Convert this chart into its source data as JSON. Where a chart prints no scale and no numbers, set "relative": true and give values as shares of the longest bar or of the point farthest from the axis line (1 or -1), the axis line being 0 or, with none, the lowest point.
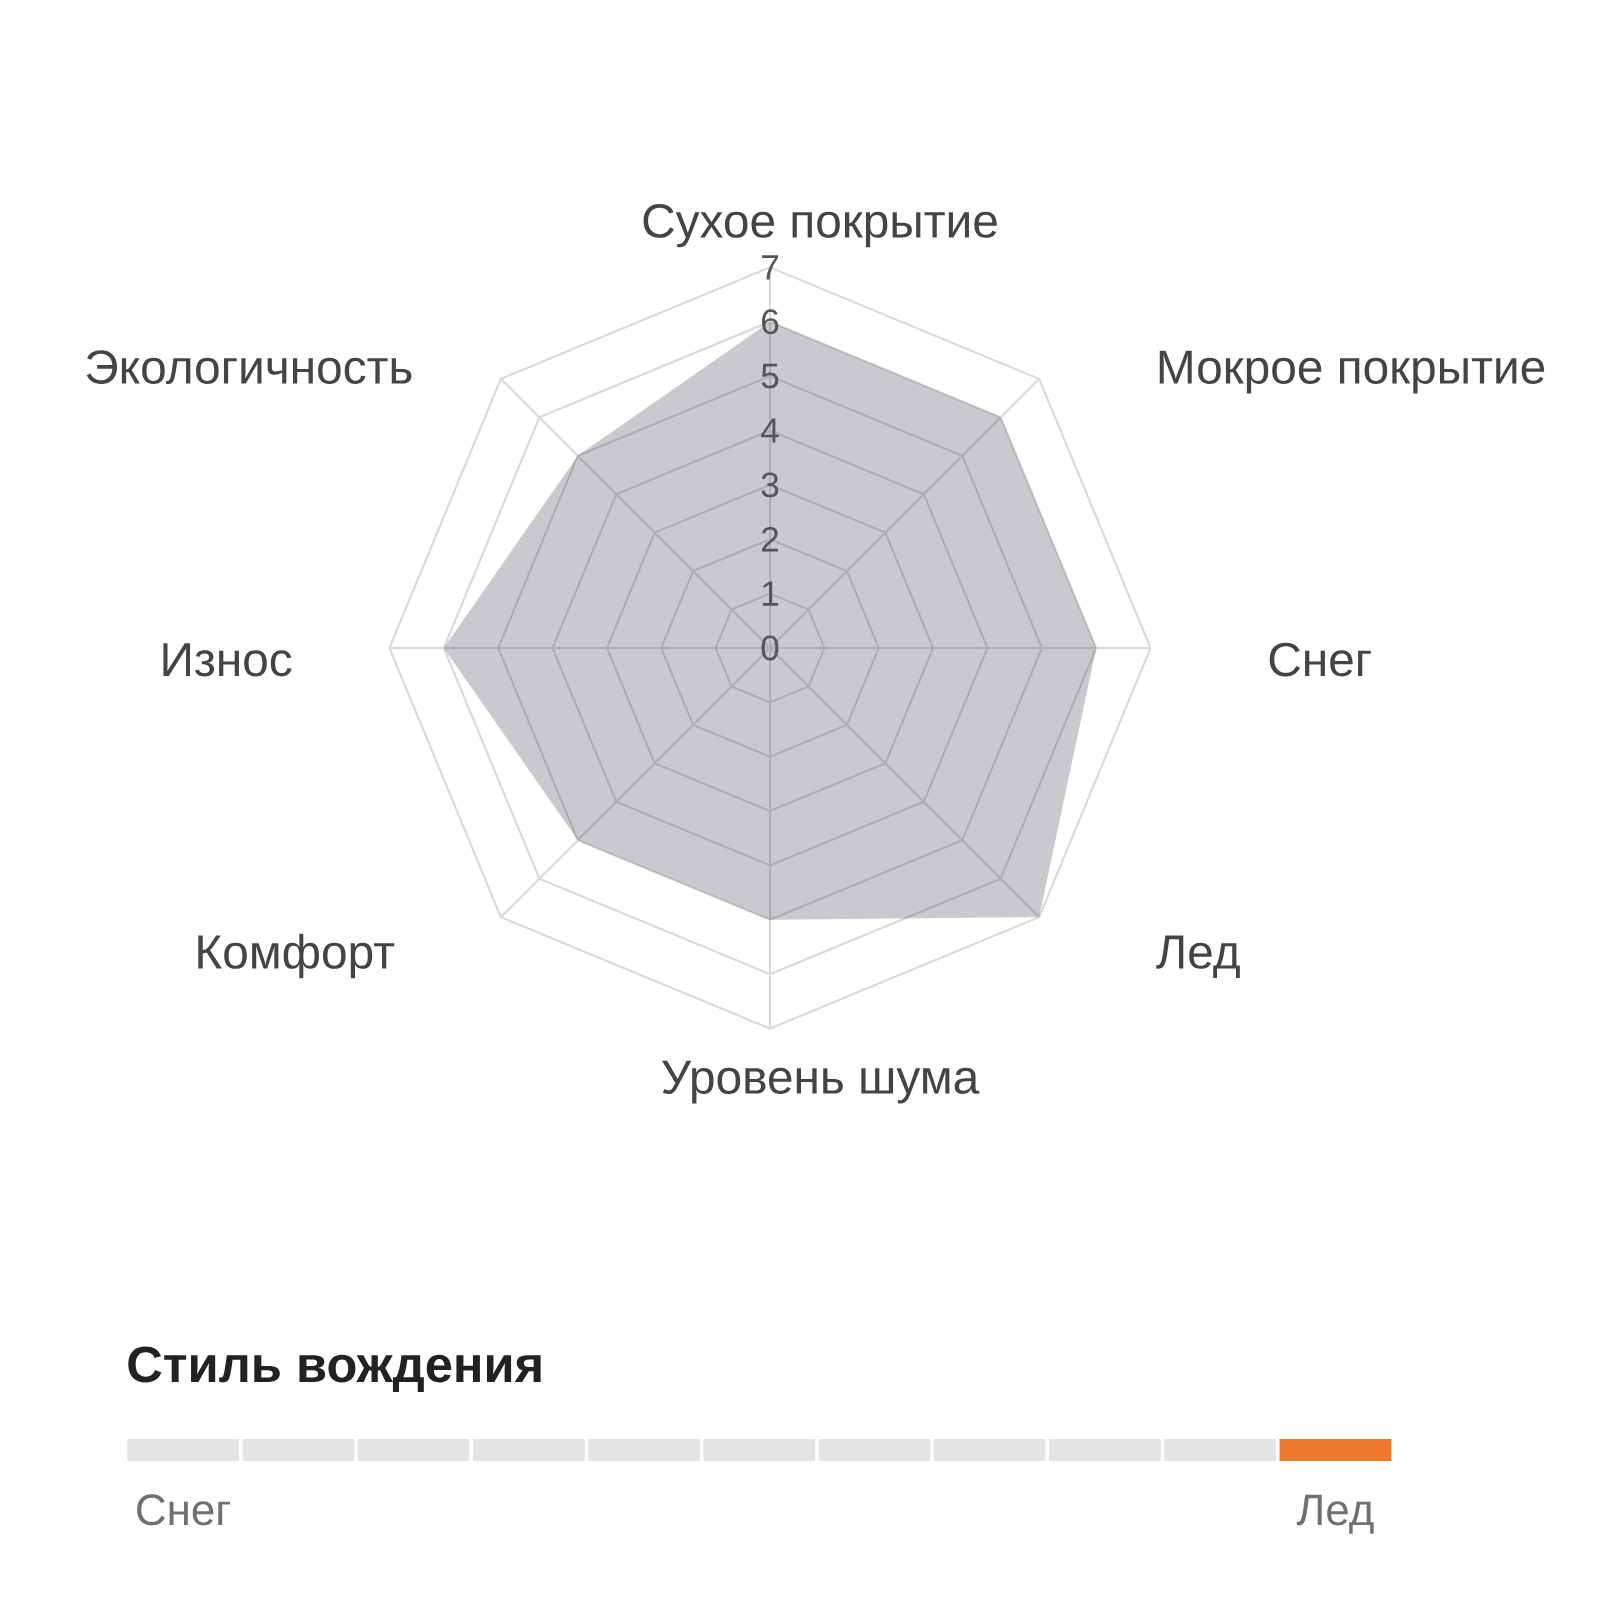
{
  "chart_data": [
    {
      "type": "radar",
      "categories": [
        "Сухое покрытие",
        "Мокрое покрытие",
        "Снег",
        "Лед",
        "Уровень шума",
        "Комфорт",
        "Износ",
        "Экологичность"
      ],
      "values": [
        6,
        6,
        6,
        7,
        5,
        5,
        6,
        5
      ],
      "color": "#c9c9ce",
      "ylim": [
        0,
        7
      ],
      "yticks": [
        0,
        1,
        2,
        3,
        4,
        5,
        6,
        7
      ],
      "grid": true
    },
    {
      "type": "bar",
      "title": "Стиль вождения",
      "categories": [
        "Снег",
        null,
        null,
        null,
        null,
        null,
        null,
        null,
        null,
        null,
        "Лед"
      ],
      "values": [
        1,
        1,
        1,
        1,
        1,
        1,
        1,
        1,
        1,
        1,
        1
      ],
      "colors": [
        "#e4e4e4",
        "#e4e4e4",
        "#e4e4e4",
        "#e4e4e4",
        "#e4e4e4",
        "#e4e4e4",
        "#e4e4e4",
        "#e4e4e4",
        "#e4e4e4",
        "#e4e4e4",
        "#ee7a2e"
      ],
      "relative": true
    }
  ]
}
